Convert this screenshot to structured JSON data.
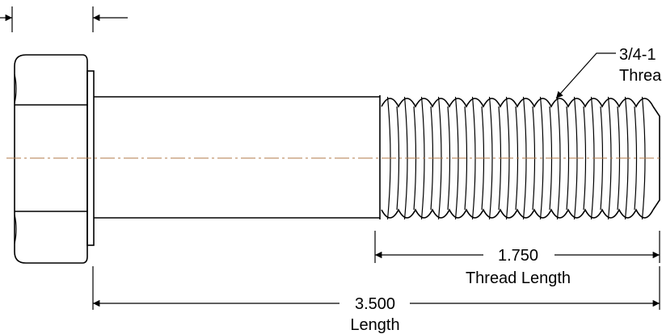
{
  "drawing": {
    "thread_dimension": {
      "value": "1.750",
      "label": "Thread Length"
    },
    "length_dimension": {
      "value": "3.500",
      "label": "Length"
    },
    "callout": {
      "line1": "3/4-1",
      "line2": "Threa"
    },
    "colors": {
      "line": "#000000",
      "centerline": "#b07a4a",
      "background": "#ffffff"
    }
  }
}
